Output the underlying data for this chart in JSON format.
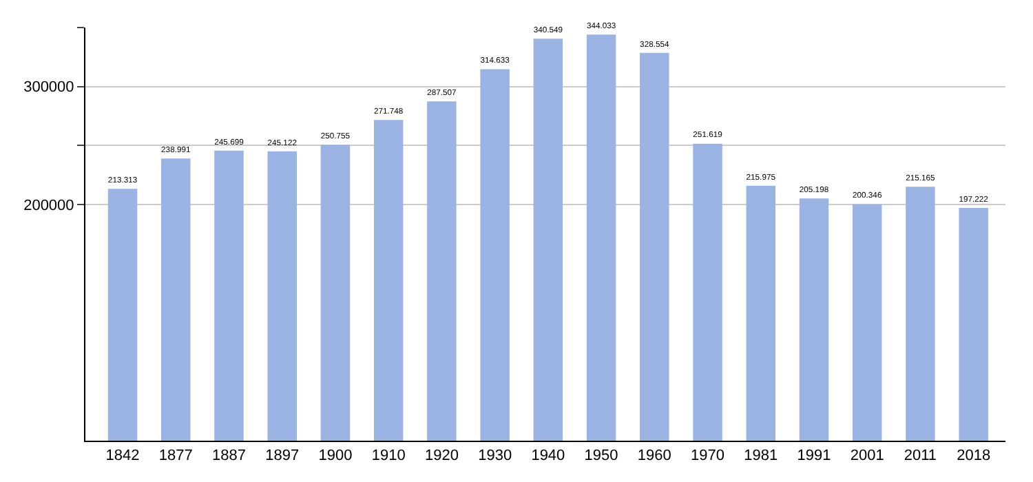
{
  "chart_data": {
    "type": "bar",
    "categories": [
      "1842",
      "1877",
      "1887",
      "1897",
      "1900",
      "1910",
      "1920",
      "1930",
      "1940",
      "1950",
      "1960",
      "1970",
      "1981",
      "1991",
      "2001",
      "2011",
      "2018"
    ],
    "values": [
      213313,
      238991,
      245699,
      245122,
      250755,
      271748,
      287507,
      314633,
      340549,
      344033,
      328554,
      251619,
      215975,
      205198,
      200346,
      215165,
      197222
    ],
    "value_labels": [
      "213.313",
      "238.991",
      "245.699",
      "245.122",
      "250.755",
      "271.748",
      "287.507",
      "314.633",
      "340.549",
      "344.033",
      "328.554",
      "251.619",
      "215.975",
      "205.198",
      "200.346",
      "215.165",
      "197.222"
    ],
    "color": "#9ab3e2",
    "ylim": [
      0,
      350000
    ],
    "yticks": [
      200000,
      {
        "value": 250000,
        "label": null
      },
      300000,
      {
        "value": 350000,
        "label": null
      }
    ],
    "grid": "y",
    "legend": false
  }
}
